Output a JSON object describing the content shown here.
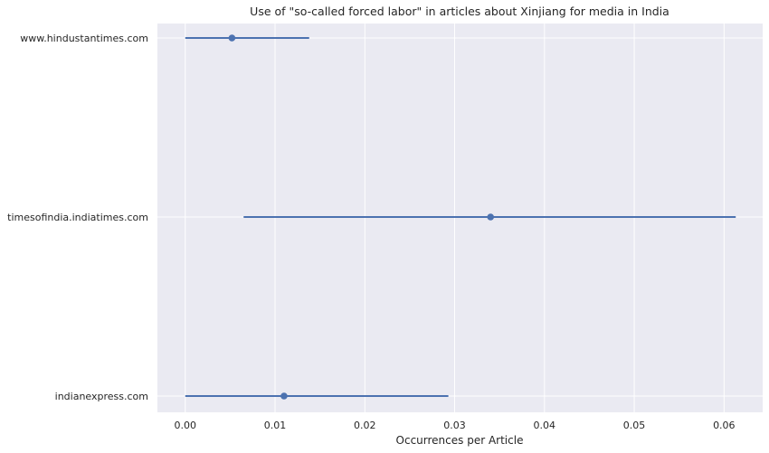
{
  "chart_data": {
    "type": "scatter",
    "title": "Use of \"so-called forced labor\" in articles about Xinjiang for media in India",
    "xlabel": "Occurrences per Article",
    "ylabel": "",
    "xlim": [
      -0.0031,
      0.0643
    ],
    "xticks": [
      "0.00",
      "0.01",
      "0.02",
      "0.03",
      "0.04",
      "0.05",
      "0.06"
    ],
    "grid": true,
    "categories": [
      "www.hindustantimes.com",
      "timesofindia.indiatimes.com",
      "indianexpress.com"
    ],
    "points": [
      {
        "label": "www.hindustantimes.com",
        "value": 0.0052,
        "ci": [
          0.0,
          0.0138
        ]
      },
      {
        "label": "timesofindia.indiatimes.com",
        "value": 0.034,
        "ci": [
          0.0065,
          0.0613
        ]
      },
      {
        "label": "indianexpress.com",
        "value": 0.011,
        "ci": [
          0.0,
          0.0293
        ]
      }
    ],
    "colors": {
      "series": "#4c72b0",
      "background": "#eaeaf2",
      "grid": "#ffffff"
    }
  }
}
